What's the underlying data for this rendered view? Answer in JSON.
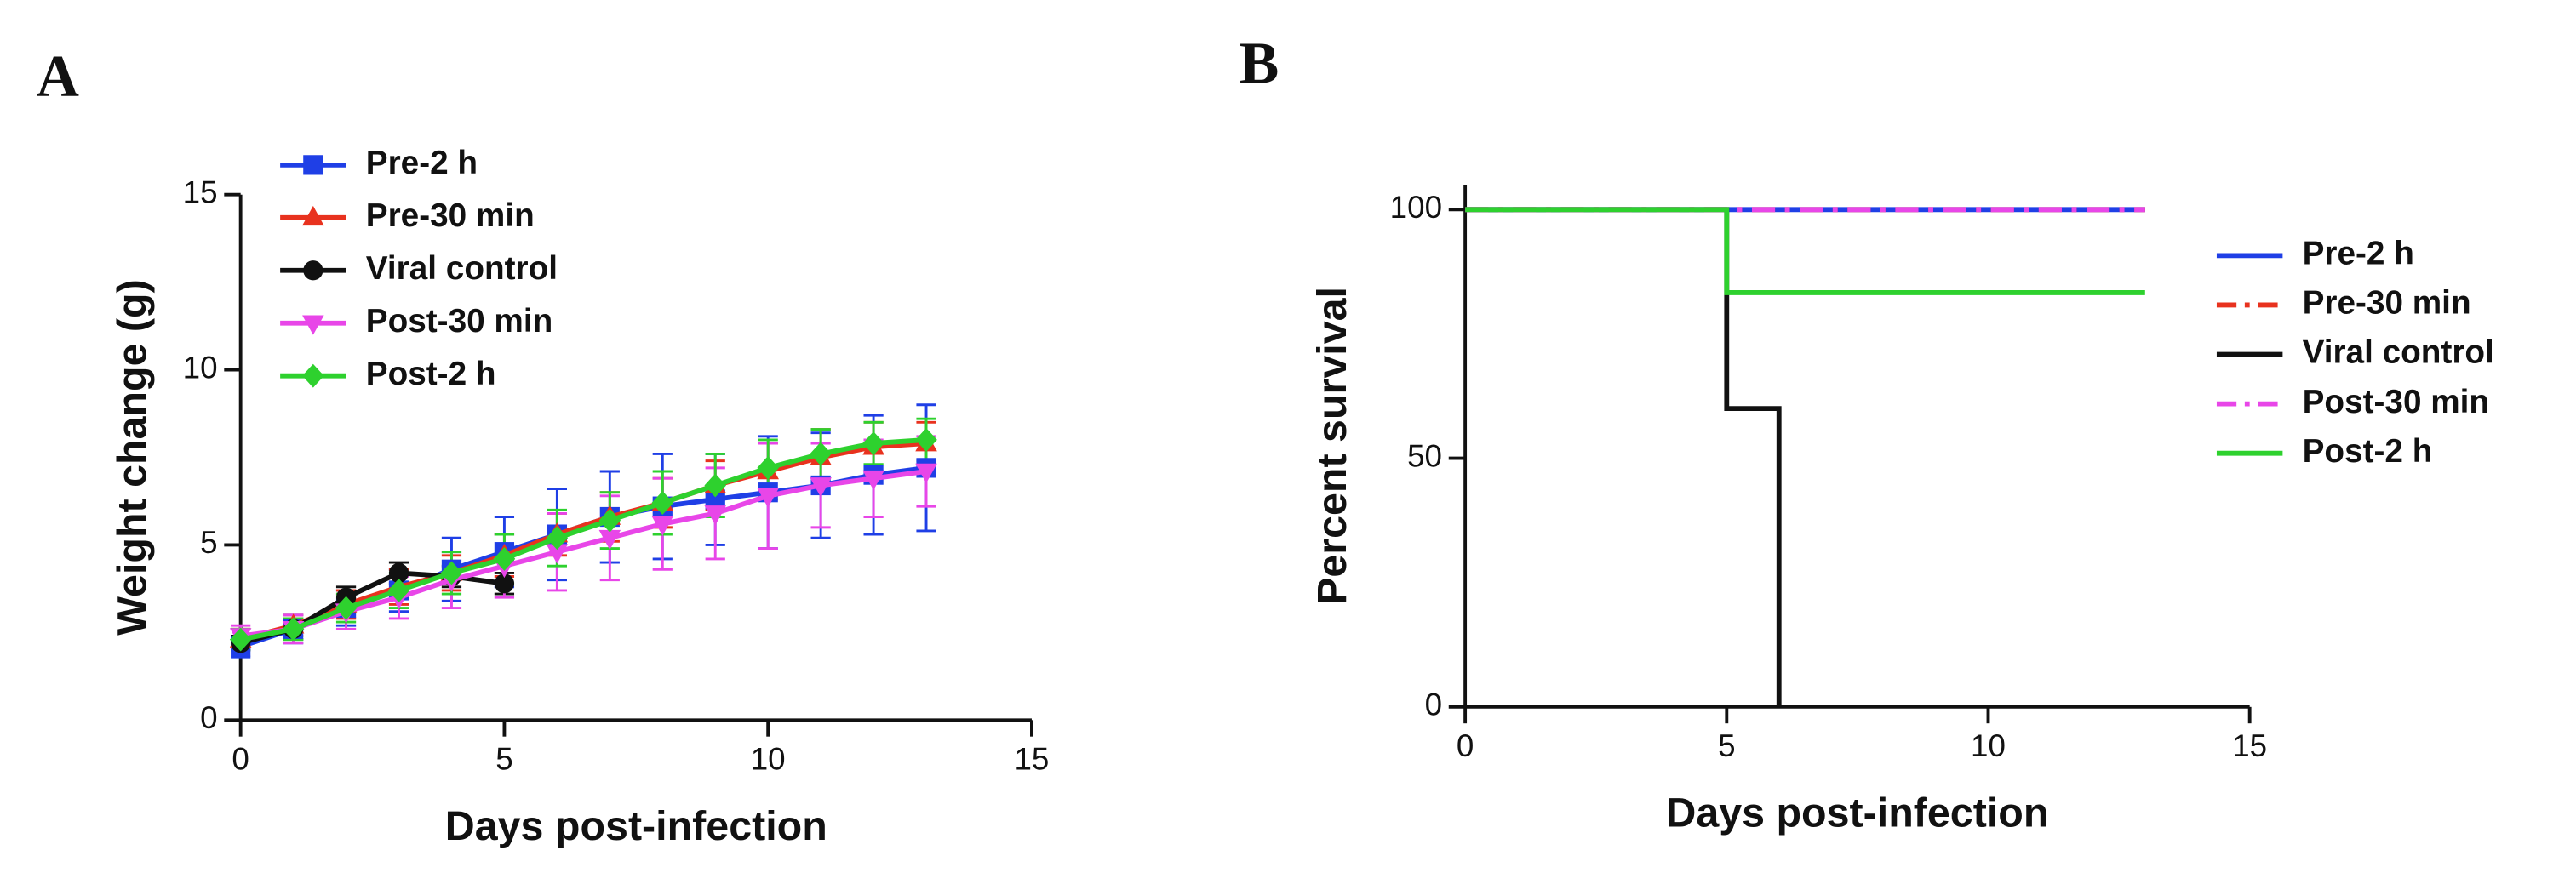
{
  "chart_data": [
    {
      "type": "line",
      "panel": "A",
      "xlabel": "Days post-infection",
      "ylabel": "Weight change (g)",
      "xlim": [
        0,
        15
      ],
      "xticks": [
        0,
        5,
        10,
        15
      ],
      "ylim": [
        0,
        15
      ],
      "yticks": [
        0,
        5,
        10,
        15
      ],
      "legend": "upper left",
      "x": [
        0,
        1,
        2,
        3,
        4,
        5,
        6,
        7,
        8,
        9,
        10,
        11,
        12,
        13
      ],
      "series": [
        {
          "name": "Pre-2 h",
          "color": "#1f3fe6",
          "marker": "square",
          "values": [
            2.1,
            2.6,
            3.2,
            3.7,
            4.3,
            4.8,
            5.3,
            5.8,
            6.1,
            6.3,
            6.5,
            6.7,
            7.0,
            7.2
          ],
          "errors": [
            0.3,
            0.4,
            0.5,
            0.6,
            0.9,
            1.0,
            1.3,
            1.3,
            1.5,
            1.3,
            1.6,
            1.5,
            1.7,
            1.8
          ]
        },
        {
          "name": "Pre-30 min",
          "color": "#e8321e",
          "marker": "triangle-up",
          "values": [
            2.3,
            2.7,
            3.3,
            3.8,
            4.2,
            4.7,
            5.3,
            5.8,
            6.2,
            6.7,
            7.1,
            7.5,
            7.8,
            7.9
          ],
          "errors": [
            0.3,
            0.3,
            0.4,
            0.5,
            0.5,
            0.6,
            0.6,
            0.7,
            0.7,
            0.7,
            0.8,
            0.8,
            0.7,
            0.6
          ]
        },
        {
          "name": "Viral control",
          "color": "#111111",
          "marker": "circle",
          "values": [
            2.2,
            2.6,
            3.5,
            4.2,
            4.1,
            3.9,
            null,
            null,
            null,
            null,
            null,
            null,
            null,
            null
          ],
          "errors": [
            0.2,
            0.3,
            0.3,
            0.3,
            0.3,
            0.3,
            null,
            null,
            null,
            null,
            null,
            null,
            null,
            null
          ]
        },
        {
          "name": "Post-30 min",
          "color": "#e846e8",
          "marker": "triangle-down",
          "values": [
            2.4,
            2.6,
            3.1,
            3.5,
            4.0,
            4.4,
            4.8,
            5.2,
            5.6,
            5.9,
            6.4,
            6.7,
            6.9,
            7.1
          ],
          "errors": [
            0.3,
            0.4,
            0.5,
            0.6,
            0.8,
            0.9,
            1.1,
            1.2,
            1.3,
            1.3,
            1.5,
            1.2,
            1.1,
            1.0
          ]
        },
        {
          "name": "Post-2 h",
          "color": "#2ed12e",
          "marker": "diamond",
          "values": [
            2.3,
            2.6,
            3.2,
            3.7,
            4.2,
            4.6,
            5.2,
            5.7,
            6.2,
            6.7,
            7.2,
            7.6,
            7.9,
            8.0
          ],
          "errors": [
            0.3,
            0.3,
            0.4,
            0.5,
            0.6,
            0.7,
            0.8,
            0.8,
            0.9,
            0.9,
            0.8,
            0.7,
            0.6,
            0.6
          ]
        }
      ]
    },
    {
      "type": "step",
      "panel": "B",
      "xlabel": "Days post-infection",
      "ylabel": "Percent survival",
      "xlim": [
        0,
        15
      ],
      "xticks": [
        0,
        5,
        10,
        15
      ],
      "ylim": [
        0,
        105
      ],
      "yticks": [
        0,
        50,
        100
      ],
      "legend": "right",
      "series": [
        {
          "name": "Pre-2 h",
          "color": "#1f3fe6",
          "dash": "solid",
          "x": [
            0,
            13
          ],
          "values": [
            100,
            100
          ]
        },
        {
          "name": "Pre-30 min",
          "color": "#e8321e",
          "dash": "dashed",
          "x": [
            0,
            13
          ],
          "values": [
            100,
            100
          ]
        },
        {
          "name": "Viral control",
          "color": "#111111",
          "dash": "solid",
          "x": [
            0,
            5,
            6
          ],
          "values": [
            100,
            60,
            0
          ]
        },
        {
          "name": "Post-30 min",
          "color": "#e846e8",
          "dash": "dashed",
          "x": [
            0,
            13
          ],
          "values": [
            100,
            100
          ]
        },
        {
          "name": "Post-2 h",
          "color": "#2ed12e",
          "dash": "solid",
          "x": [
            0,
            5,
            13
          ],
          "values": [
            100,
            83.3,
            83.3
          ]
        }
      ]
    }
  ]
}
